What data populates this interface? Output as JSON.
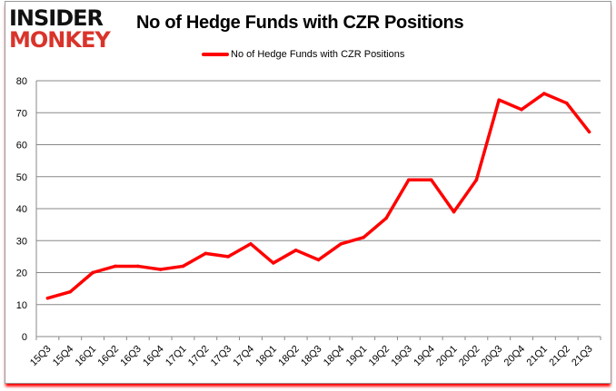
{
  "logo": {
    "line1": "INSIDER",
    "line2": "MONKEY"
  },
  "chart_data": {
    "type": "line",
    "title": "No of Hedge Funds with CZR Positions",
    "xlabel": "",
    "ylabel": "",
    "ylim": [
      0,
      80
    ],
    "yticks": [
      0,
      10,
      20,
      30,
      40,
      50,
      60,
      70,
      80
    ],
    "grid": true,
    "legend": "top",
    "categories": [
      "15Q3",
      "15Q4",
      "16Q1",
      "16Q2",
      "16Q3",
      "16Q4",
      "17Q1",
      "17Q2",
      "17Q3",
      "17Q4",
      "18Q1",
      "18Q2",
      "18Q3",
      "18Q4",
      "19Q1",
      "19Q2",
      "19Q3",
      "19Q4",
      "20Q1",
      "20Q2",
      "20Q3",
      "20Q4",
      "21Q1",
      "21Q2",
      "21Q3"
    ],
    "series": [
      {
        "name": "No of Hedge Funds with CZR Positions",
        "color": "#ff0000",
        "values": [
          12,
          14,
          20,
          22,
          22,
          21,
          22,
          26,
          25,
          29,
          23,
          27,
          24,
          29,
          31,
          37,
          49,
          49,
          39,
          49,
          74,
          71,
          76,
          73,
          64
        ]
      }
    ]
  }
}
